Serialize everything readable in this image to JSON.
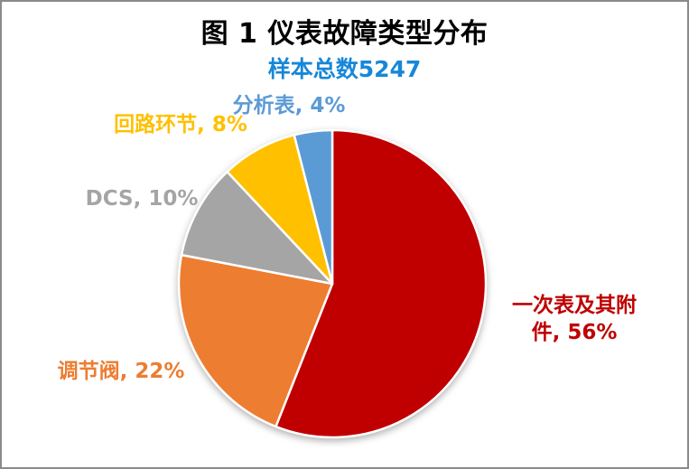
{
  "window": {
    "background": "#FFFFFF",
    "border_color": "#8A8A8A"
  },
  "chart_data": {
    "type": "pie",
    "title": "图 1 仪表故障类型分布",
    "title_color": "#000000",
    "subtitle": "样本总数5247",
    "subtitle_color": "#1787D8",
    "total_samples": 5247,
    "legend_position": "none",
    "labels_position": "outside",
    "start_angle_deg": 0,
    "direction": "clockwise",
    "slices": [
      {
        "name": "一次表及其附件",
        "value_pct": 56,
        "color": "#C00000",
        "label_text": "一次表及其附件, 56%",
        "label_lines": [
          "一次表及其附",
          "件, 56%"
        ]
      },
      {
        "name": "调节阀",
        "value_pct": 22,
        "color": "#ED7D31",
        "label_text": "调节阀, 22%"
      },
      {
        "name": "DCS",
        "value_pct": 10,
        "color": "#A5A5A5",
        "label_text": "DCS, 10%"
      },
      {
        "name": "回路环节",
        "value_pct": 8,
        "color": "#FFC000",
        "label_text": "回路环节, 8%"
      },
      {
        "name": "分析表",
        "value_pct": 4,
        "color": "#5B9BD5",
        "label_text": "分析表, 4%"
      }
    ]
  }
}
